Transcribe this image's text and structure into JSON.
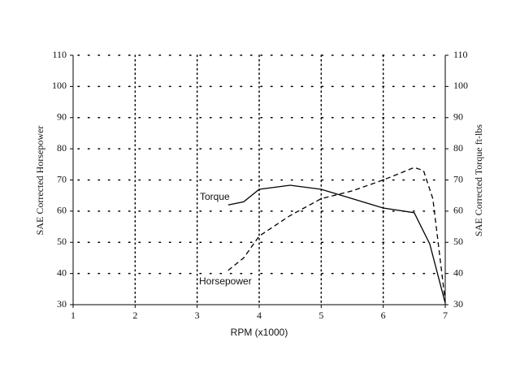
{
  "chart_data": {
    "type": "line",
    "xlabel": "RPM (x1000)",
    "ylabel": "SAE Corrected Horsepower",
    "y2label": "SAE Corrected Torque ft-lbs",
    "xlim": [
      1,
      7
    ],
    "xticks": [
      1,
      2,
      3,
      4,
      5,
      6,
      7
    ],
    "ylim": [
      30,
      110
    ],
    "yticks": [
      30,
      40,
      50,
      60,
      70,
      80,
      90,
      100,
      110
    ],
    "y2lim": [
      30,
      110
    ],
    "y2ticks": [
      30,
      40,
      50,
      60,
      70,
      80,
      90,
      100,
      110
    ],
    "grid": true,
    "series": [
      {
        "name": "Torque",
        "color": "#000000",
        "style": "solid",
        "axis": "y2",
        "x": [
          3.5,
          3.75,
          4,
          4.5,
          5,
          5.5,
          6,
          6.5,
          6.75,
          7
        ],
        "values": [
          62,
          63,
          67,
          68.3,
          67,
          64,
          61,
          59.5,
          49.5,
          30.5
        ]
      },
      {
        "name": "Horsepower",
        "color": "#000000",
        "style": "dashed",
        "x": [
          3.5,
          3.75,
          4,
          4.5,
          5,
          5.5,
          6,
          6.25,
          6.5,
          6.65,
          6.8,
          7
        ],
        "values": [
          41,
          45,
          52,
          58.6,
          64,
          66.5,
          70,
          72,
          74,
          73,
          64,
          31
        ]
      }
    ]
  }
}
